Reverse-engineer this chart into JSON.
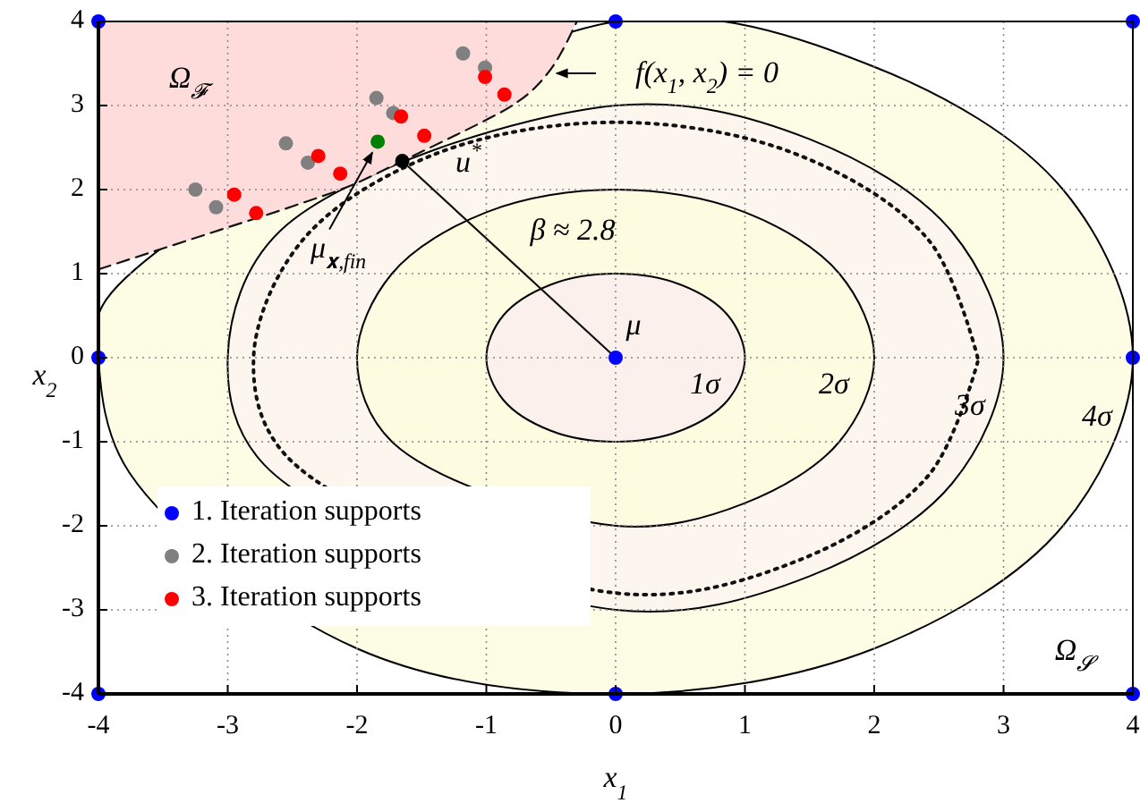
{
  "chart_data": {
    "type": "scatter",
    "xlabel": "x$_{1}$",
    "ylabel": "x$_{2}$",
    "xlim": [
      -4,
      4
    ],
    "ylim": [
      -4,
      4
    ],
    "xticks": [
      -4,
      -3,
      -2,
      -1,
      0,
      1,
      2,
      3,
      4
    ],
    "yticks": [
      -4,
      -3,
      -2,
      -1,
      0,
      1,
      2,
      3,
      4
    ],
    "grid": true,
    "legend": "bottom left",
    "series": [
      {
        "type": "area",
        "color": "#fdfde6",
        "x": [
          4,
          3.46,
          2,
          0,
          -3.94,
          -4,
          -3.76,
          -2,
          0,
          2,
          3.46
        ],
        "values": [
          0,
          2,
          3.46,
          4,
          0.69,
          0,
          -1.37,
          -3.46,
          -4,
          -3.46,
          -2
        ]
      },
      {
        "type": "area",
        "color": "#fdf6ee",
        "x": [
          3,
          2.6,
          1.5,
          0,
          -2.6,
          -3,
          -2.72,
          0,
          1.5,
          2.6
        ],
        "values": [
          0,
          1.5,
          2.6,
          3,
          1.5,
          0,
          -1.27,
          -3,
          -2.6,
          -1.5
        ]
      },
      {
        "type": "area",
        "color": "#fdfbe0",
        "x": [
          2,
          1.73,
          1,
          0,
          -1,
          -1.73,
          -2,
          -1.73,
          0,
          1,
          1.73
        ],
        "values": [
          0,
          1,
          1.73,
          2,
          1.73,
          1,
          0,
          -1,
          -2,
          -1.73,
          -1
        ]
      },
      {
        "type": "area",
        "color": "#fcf0ec",
        "x": [
          1,
          0.87,
          0.5,
          0,
          -0.5,
          -0.87,
          -1,
          -0.87,
          -0.5,
          0,
          0.5,
          0.87
        ],
        "values": [
          0,
          0.5,
          0.87,
          1,
          0.87,
          0.5,
          0,
          -0.5,
          -0.87,
          -1,
          -0.87,
          -0.5
        ]
      },
      {
        "type": "line",
        "color": "#111111",
        "line_style": "dotted",
        "x": [
          2.8,
          2.42,
          1.4,
          0,
          -1.4,
          -2.42,
          -2.8,
          -2.54,
          0,
          1.4,
          2.42,
          2.8
        ],
        "values": [
          0,
          1.4,
          2.42,
          2.8,
          2.42,
          1.4,
          0,
          -1.18,
          -2.8,
          -2.42,
          -1.4,
          -0.05
        ]
      },
      {
        "type": "line",
        "color": "#111111",
        "line_style": "dashed",
        "x": [
          -4,
          -3.5,
          -3,
          -2.5,
          -2,
          -1.65,
          -1.3,
          -1,
          -0.8,
          -0.6,
          -0.45,
          -0.3
        ],
        "values": [
          1.05,
          1.3,
          1.55,
          1.8,
          2.08,
          2.34,
          2.6,
          2.83,
          3.0,
          3.25,
          3.55,
          4
        ],
        "lower": [
          1.05,
          1.3,
          1.55,
          1.8,
          2.08,
          2.34,
          2.6,
          2.83,
          3.0,
          3.25,
          3.55,
          4
        ],
        "upper": [
          4,
          4,
          4,
          4,
          4,
          4,
          4,
          4,
          4,
          4,
          4,
          4
        ]
      },
      {
        "type": "line",
        "color": "#111111",
        "line_style": "solid",
        "x": [
          0,
          -1.65
        ],
        "values": [
          0,
          2.34
        ]
      },
      {
        "name": "1. Iteration supports",
        "color": "#0000ff",
        "marker": "circle",
        "x": [
          -4,
          0,
          4,
          -4,
          0,
          4,
          -4,
          0,
          4
        ],
        "values": [
          4,
          4,
          4,
          0,
          0,
          0,
          -4,
          -4,
          -4
        ]
      },
      {
        "name": "2. Iteration supports",
        "color": "#808080",
        "marker": "circle",
        "x": [
          -3.25,
          -3.09,
          -2.55,
          -2.38,
          -1.85,
          -1.72,
          -1.18,
          -1.01
        ],
        "values": [
          2.0,
          1.79,
          2.55,
          2.32,
          3.09,
          2.91,
          3.62,
          3.45
        ]
      },
      {
        "name": "3. Iteration supports",
        "color": "#ff0000",
        "marker": "circle",
        "x": [
          -2.95,
          -2.78,
          -2.3,
          -2.13,
          -1.66,
          -1.48,
          -1.01,
          -0.86
        ],
        "values": [
          1.94,
          1.72,
          2.4,
          2.19,
          2.87,
          2.64,
          3.34,
          3.13
        ]
      },
      {
        "color": "#008000",
        "marker": "circle",
        "x": [
          -1.84
        ],
        "values": [
          2.57
        ]
      },
      {
        "color": "#000000",
        "marker": "circle",
        "x": [
          -1.65
        ],
        "values": [
          2.34
        ]
      }
    ],
    "annotations": [
      "Ω$_{𝓕}$",
      "f(x$_{1}$, x$_{2}$) = 0",
      {
        "text": "u$^{*}$",
        "x": -1.65,
        "y": 2.34
      },
      "β ≈ 2.8",
      {
        "text": "μ",
        "x": 0,
        "y": 0
      },
      {
        "text": "μ$_{𝐱,fin}$",
        "x": -1.84,
        "y": 2.57
      },
      "1σ",
      "2σ",
      "3σ",
      "4σ",
      "Ω$_{𝓢}$"
    ]
  }
}
